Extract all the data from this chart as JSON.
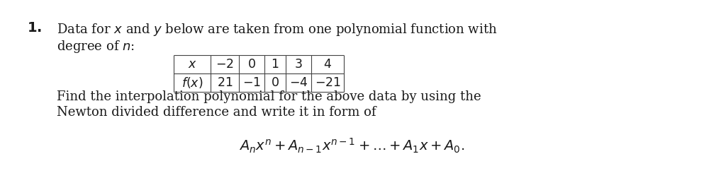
{
  "number": "\\textbf{1.}",
  "text_line1": "Data for $x$ and $y$ below are taken from one polynomial function with",
  "text_line2": "degree of $n$:",
  "x_label": "$x$",
  "fx_label": "$f(x)$",
  "x_values": [
    "$-2$",
    "$0$",
    "$1$",
    "$3$",
    "$4$"
  ],
  "fx_values": [
    "$21$",
    "$-1$",
    "$0$",
    "$-4$",
    "$-21$"
  ],
  "text_line3": "Find the interpolation polynomial for the above data by using the",
  "text_line4": "Newton divided difference and write it in form of",
  "formula": "$A_n x^n + A_{n-1}x^{n-1} + \\ldots + A_1 x + A_0.$",
  "bg_color": "#ffffff",
  "text_color": "#1a1a1a",
  "font_size": 13,
  "table_font_size": 12.5
}
